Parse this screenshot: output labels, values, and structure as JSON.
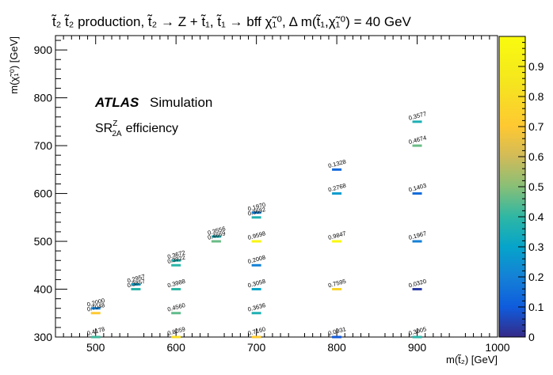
{
  "chart_data": {
    "type": "heatmap",
    "title": "t̃₂ t̃₂ production, t̃₂ → Z + t̃₁, t̃₁ → bff χ̃₁⁰, Δ m(t̃₁,χ̃₁⁰) = 40 GeV",
    "xlabel": "m(t̃₂) [GeV]",
    "ylabel": "m(χ̃₁⁰) [GeV]",
    "xlim": [
      450,
      1000
    ],
    "ylim": [
      300,
      930
    ],
    "xticks": [
      500,
      600,
      700,
      800,
      900,
      1000
    ],
    "yticks": [
      300,
      400,
      500,
      600,
      700,
      800,
      900
    ],
    "zlim": [
      0,
      1
    ],
    "zticks": [
      "0",
      "0.1",
      "0.2",
      "0.3",
      "0.4",
      "0.5",
      "0.6",
      "0.7",
      "0.8",
      "0.9"
    ],
    "grid": false,
    "annotations": {
      "experiment": "ATLAS",
      "experiment_suffix": "Simulation",
      "region_prefix": "SR",
      "region_sup": "Z",
      "region_sub": "2A",
      "region_suffix": "efficiency"
    },
    "points": [
      {
        "x": 500,
        "y": 300,
        "value": 0.4178,
        "label": "0.4178"
      },
      {
        "x": 500,
        "y": 350,
        "value": 0.7048,
        "label": "0.7048"
      },
      {
        "x": 500,
        "y": 360,
        "value": 0.2,
        "label": "0.2000"
      },
      {
        "x": 550,
        "y": 400,
        "value": 0.3857,
        "label": "0.3857"
      },
      {
        "x": 550,
        "y": 410,
        "value": 0.2957,
        "label": "0.2957"
      },
      {
        "x": 600,
        "y": 300,
        "value": 0.8059,
        "label": "0.8059"
      },
      {
        "x": 600,
        "y": 350,
        "value": 0.456,
        "label": "0.4560"
      },
      {
        "x": 600,
        "y": 400,
        "value": 0.3988,
        "label": "0.3988"
      },
      {
        "x": 600,
        "y": 450,
        "value": 0.3922,
        "label": "0.3922"
      },
      {
        "x": 600,
        "y": 460,
        "value": 0.3672,
        "label": "0.3672"
      },
      {
        "x": 650,
        "y": 500,
        "value": 0.4669,
        "label": "0.4669"
      },
      {
        "x": 650,
        "y": 510,
        "value": 0.3556,
        "label": "0.3556"
      },
      {
        "x": 700,
        "y": 300,
        "value": 0.716,
        "label": "0.7160"
      },
      {
        "x": 700,
        "y": 350,
        "value": 0.3636,
        "label": "0.3636"
      },
      {
        "x": 700,
        "y": 400,
        "value": 0.3058,
        "label": "0.3058"
      },
      {
        "x": 700,
        "y": 450,
        "value": 0.2008,
        "label": "0.2008"
      },
      {
        "x": 700,
        "y": 500,
        "value": 0.9598,
        "label": "0.9598"
      },
      {
        "x": 700,
        "y": 550,
        "value": 0.3682,
        "label": "0.3682"
      },
      {
        "x": 700,
        "y": 560,
        "value": 0.197,
        "label": "0.1970"
      },
      {
        "x": 800,
        "y": 300,
        "value": 0.0931,
        "label": "0.0931"
      },
      {
        "x": 800,
        "y": 400,
        "value": 0.7595,
        "label": "0.7595"
      },
      {
        "x": 800,
        "y": 500,
        "value": 0.9847,
        "label": "0.9847"
      },
      {
        "x": 800,
        "y": 600,
        "value": 0.2768,
        "label": "0.2768"
      },
      {
        "x": 800,
        "y": 650,
        "value": 0.1328,
        "label": "0.1328"
      },
      {
        "x": 900,
        "y": 300,
        "value": 0.3905,
        "label": "0.3905"
      },
      {
        "x": 900,
        "y": 400,
        "value": 0.032,
        "label": "0.0320"
      },
      {
        "x": 900,
        "y": 500,
        "value": 0.1967,
        "label": "0.1967"
      },
      {
        "x": 900,
        "y": 600,
        "value": 0.1403,
        "label": "0.1403"
      },
      {
        "x": 900,
        "y": 700,
        "value": 0.4674,
        "label": "0.4674"
      },
      {
        "x": 900,
        "y": 750,
        "value": 0.3577,
        "label": "0.3577"
      }
    ]
  }
}
